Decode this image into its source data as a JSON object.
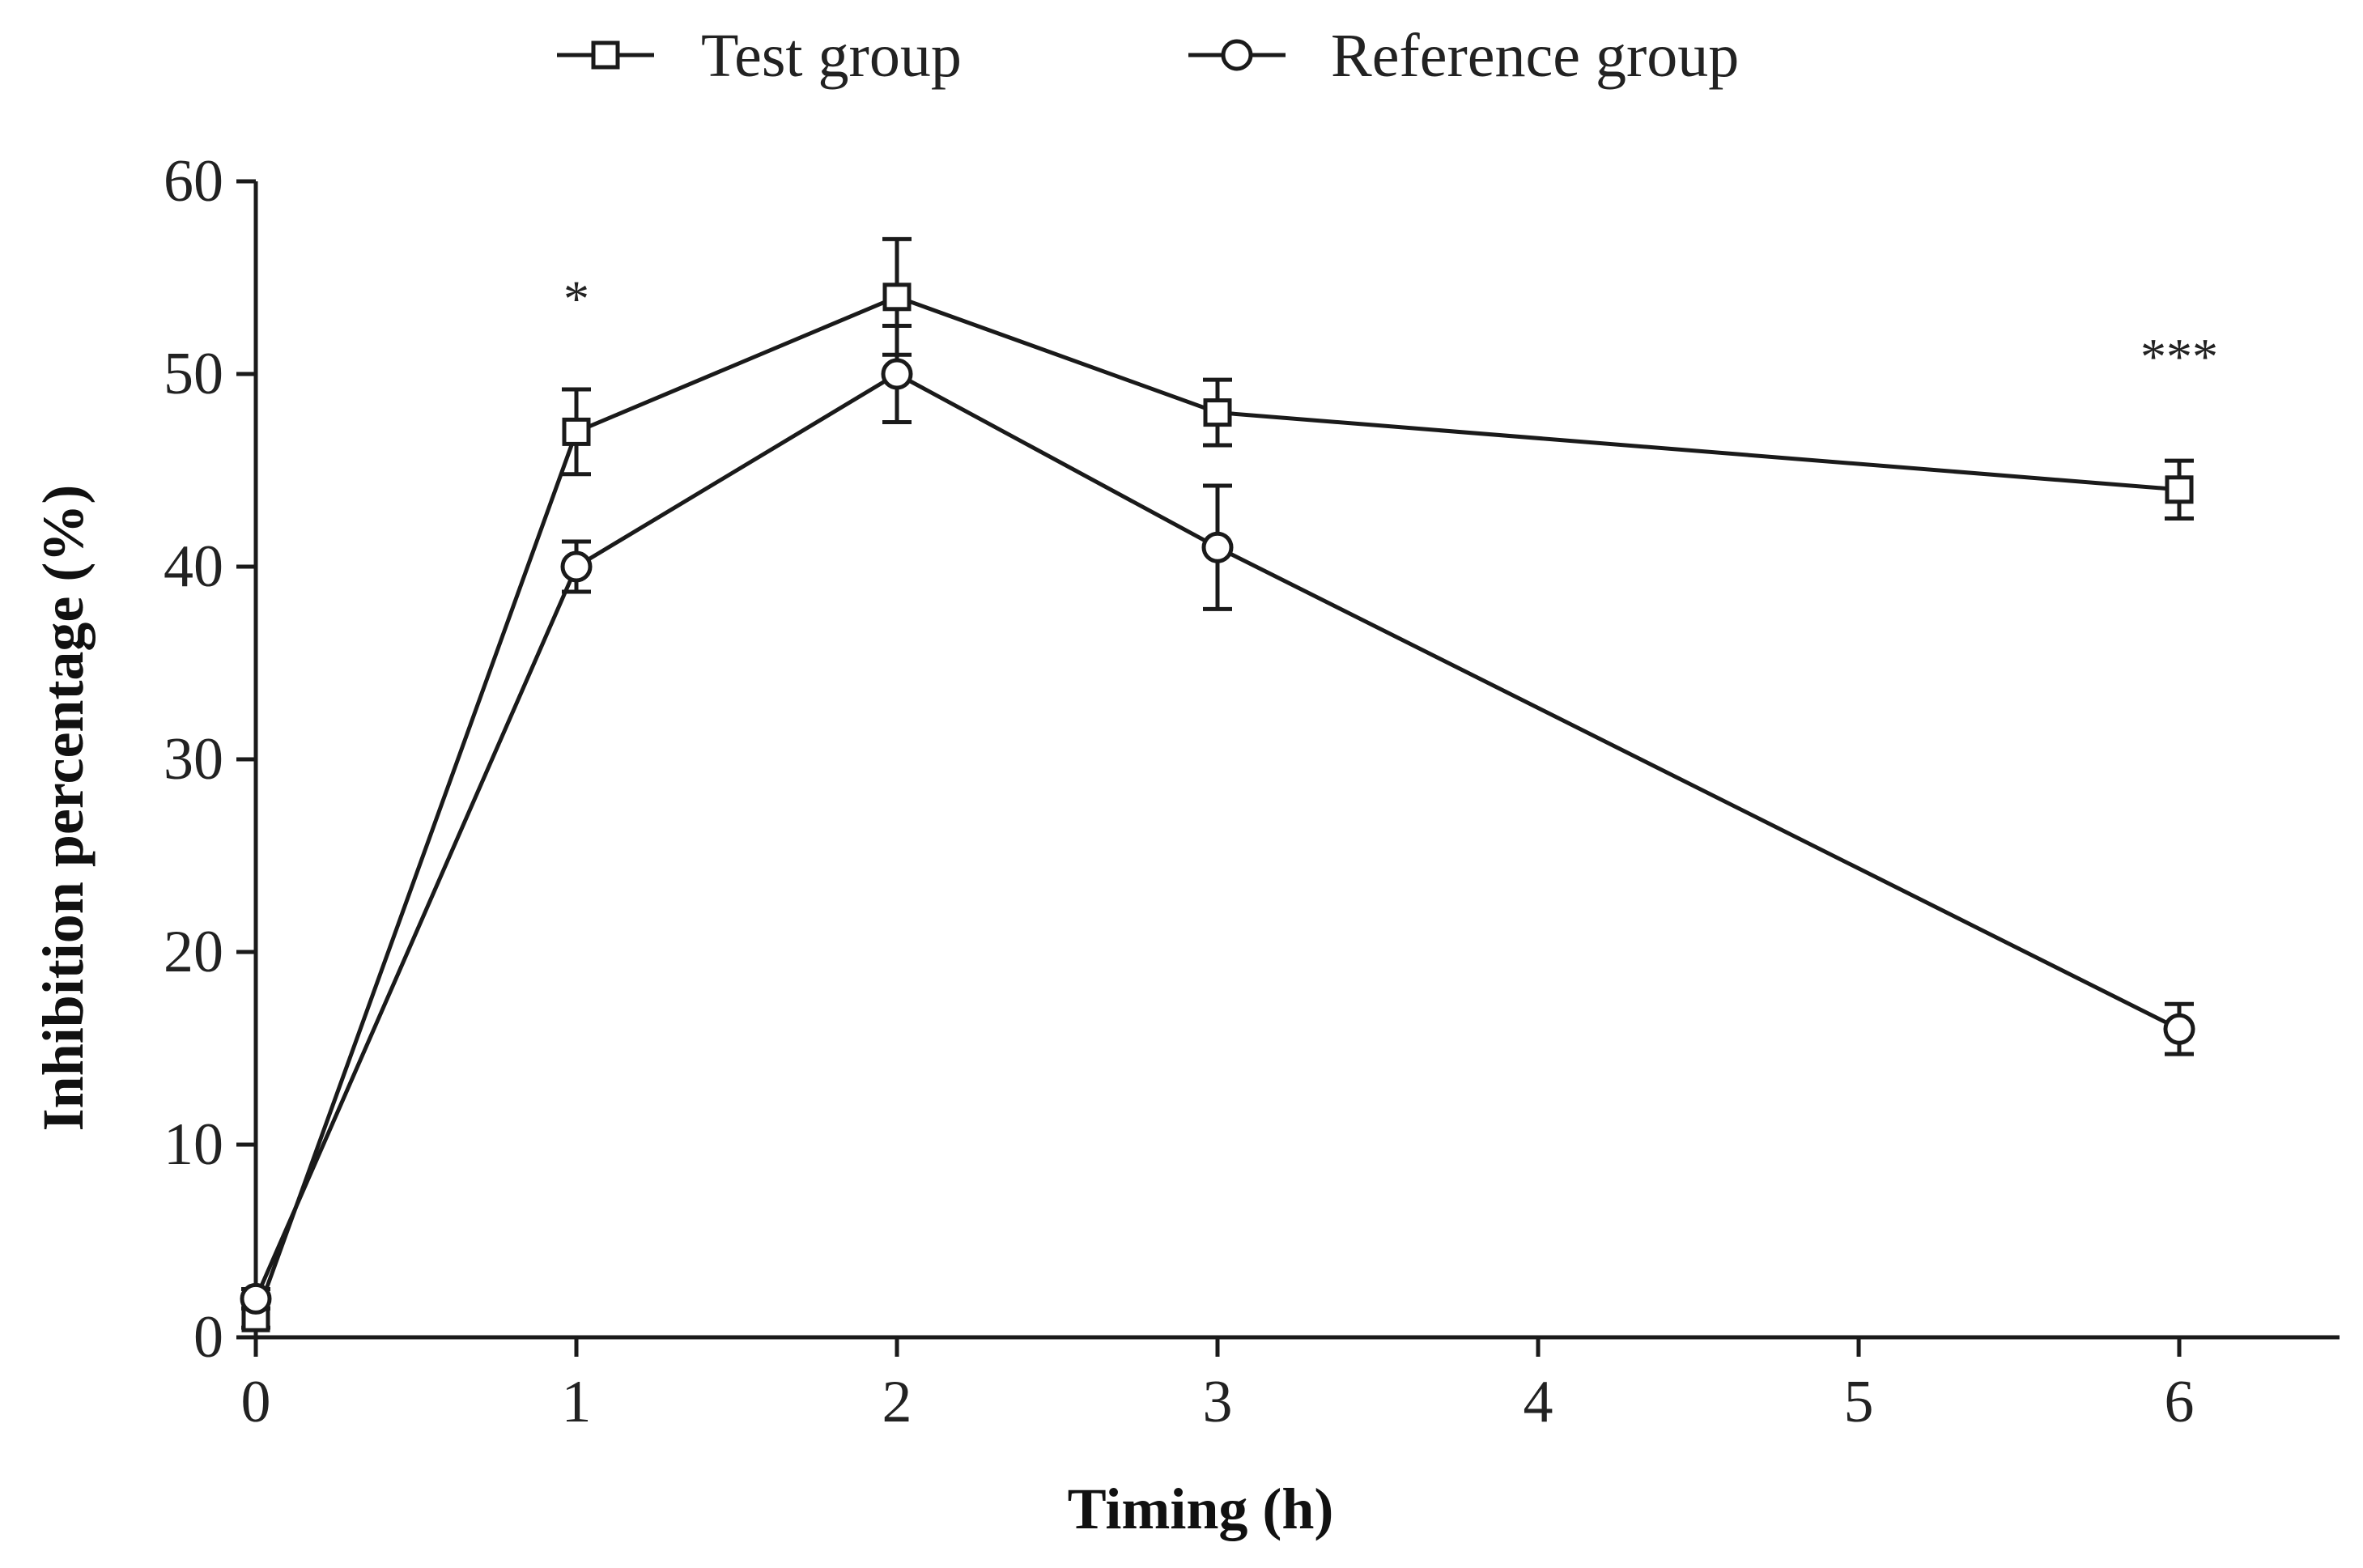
{
  "chart_data": {
    "type": "line",
    "title": "",
    "xlabel": "Timing (h)",
    "ylabel": "Inhibition percentage (%)",
    "xlim": [
      0,
      6.5
    ],
    "ylim": [
      0,
      60
    ],
    "xticks": [
      0,
      1,
      2,
      3,
      4,
      5,
      6
    ],
    "yticks": [
      0,
      10,
      20,
      30,
      40,
      50,
      60
    ],
    "xtick_labels": [
      "0",
      "1",
      "2",
      "3",
      "4",
      "5",
      "6"
    ],
    "ytick_labels": [
      "0",
      "10",
      "20",
      "30",
      "40",
      "50",
      "60"
    ],
    "grid": false,
    "legend_position": "top",
    "series": [
      {
        "name": "Test group",
        "marker": "square",
        "x": [
          0,
          1,
          2,
          3,
          6
        ],
        "values": [
          1,
          47,
          54,
          48,
          44
        ],
        "error": [
          0.5,
          2.2,
          3.0,
          1.7,
          1.5
        ]
      },
      {
        "name": "Reference group",
        "marker": "circle",
        "x": [
          0,
          1,
          2,
          3,
          6
        ],
        "values": [
          2,
          40,
          50,
          41,
          16
        ],
        "error": [
          0.5,
          1.3,
          2.5,
          3.2,
          1.3
        ]
      }
    ],
    "annotations": [
      {
        "x": 1,
        "y": 53,
        "text": "*"
      },
      {
        "x": 6,
        "y": 50,
        "text": "***"
      }
    ]
  }
}
